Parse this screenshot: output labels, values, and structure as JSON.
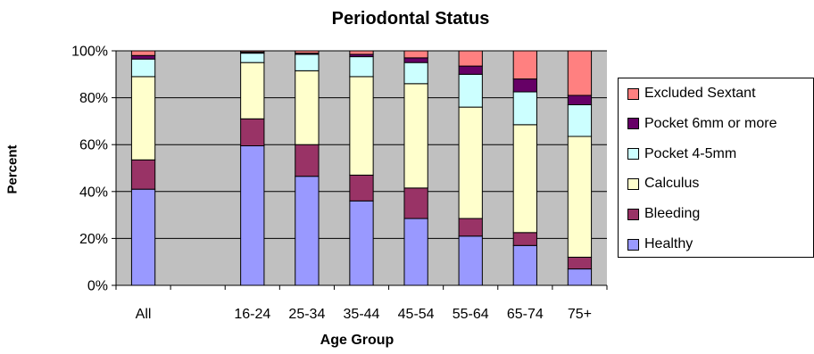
{
  "chart_data": {
    "type": "bar",
    "stacked": true,
    "title": "Periodontal Status",
    "xlabel": "Age Group",
    "ylabel": "Percent",
    "ylim": [
      0,
      100
    ],
    "yticks": [
      "0%",
      "20%",
      "40%",
      "60%",
      "80%",
      "100%"
    ],
    "categories": [
      "All",
      "",
      "16-24",
      "25-34",
      "35-44",
      "45-54",
      "55-64",
      "65-74",
      "75+"
    ],
    "grid": true,
    "legend_position": "right",
    "series": [
      {
        "name": "Healthy",
        "color": "#9999FF",
        "values": [
          41,
          null,
          59.5,
          46.5,
          36,
          28.5,
          21,
          17,
          7
        ]
      },
      {
        "name": "Bleeding",
        "color": "#993366",
        "values": [
          12.5,
          null,
          11.5,
          13.5,
          11,
          13,
          7.5,
          5.5,
          5
        ]
      },
      {
        "name": "Calculus",
        "color": "#FFFFCC",
        "values": [
          35.5,
          null,
          24,
          31.5,
          42,
          44.5,
          47.5,
          46,
          51.5
        ]
      },
      {
        "name": "Pocket 4-5mm",
        "color": "#CCFFFF",
        "values": [
          7.5,
          null,
          4,
          7,
          8.5,
          9,
          14,
          14,
          13.5
        ]
      },
      {
        "name": "Pocket 6mm or more",
        "color": "#660066",
        "values": [
          1.5,
          null,
          0.5,
          0.5,
          1,
          2,
          3.5,
          5.5,
          4
        ]
      },
      {
        "name": "Excluded Sextant",
        "color": "#FF8080",
        "values": [
          2,
          null,
          0.5,
          1,
          1.5,
          3,
          6.5,
          12,
          19
        ]
      }
    ],
    "plot_background": "#C0C0C0"
  }
}
